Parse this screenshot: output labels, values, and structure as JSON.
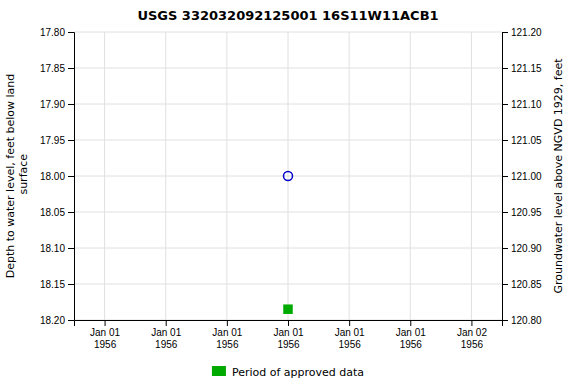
{
  "chart_data": {
    "type": "scatter",
    "title": "USGS 332032092125001 16S11W11ACB1",
    "ylabel": "Depth to water level, feet below land\n surface",
    "y2label": "Groundwater level above NGVD 1929, feet",
    "categories": [
      "Jan 01\n1956",
      "Jan 01\n1956",
      "Jan 01\n1956",
      "Jan 01\n1956",
      "Jan 01\n1956",
      "Jan 01\n1956",
      "Jan 02\n1956"
    ],
    "series": [
      {
        "color": "#0000cc",
        "marker": "open-circle",
        "values": [
          null,
          null,
          null,
          18.0,
          null,
          null,
          null
        ]
      },
      {
        "name": "Period of approved data",
        "color": "#00aa00",
        "marker": "square",
        "values": [
          null,
          null,
          null,
          18.185,
          null,
          null,
          null
        ]
      }
    ],
    "ylim": [
      18.2,
      17.8
    ],
    "yticks": [
      {
        "value": 17.8,
        "label": "17.80"
      },
      17.85,
      {
        "value": 17.9,
        "label": "17.90"
      },
      17.95,
      {
        "value": 18.0,
        "label": "18.00"
      },
      18.05,
      {
        "value": 18.1,
        "label": "18.10"
      },
      18.15,
      {
        "value": 18.2,
        "label": "18.20"
      }
    ],
    "y2lim": [
      120.8,
      121.2
    ],
    "y2ticks": [
      {
        "value": 120.8,
        "label": "120.80"
      },
      120.85,
      {
        "value": 120.9,
        "label": "120.90"
      },
      120.95,
      {
        "value": 121.0,
        "label": "121.00"
      },
      121.05,
      {
        "value": 121.1,
        "label": "121.10"
      },
      121.15,
      {
        "value": 121.2,
        "label": "121.20"
      }
    ],
    "grid": true,
    "legend": "bottom"
  }
}
